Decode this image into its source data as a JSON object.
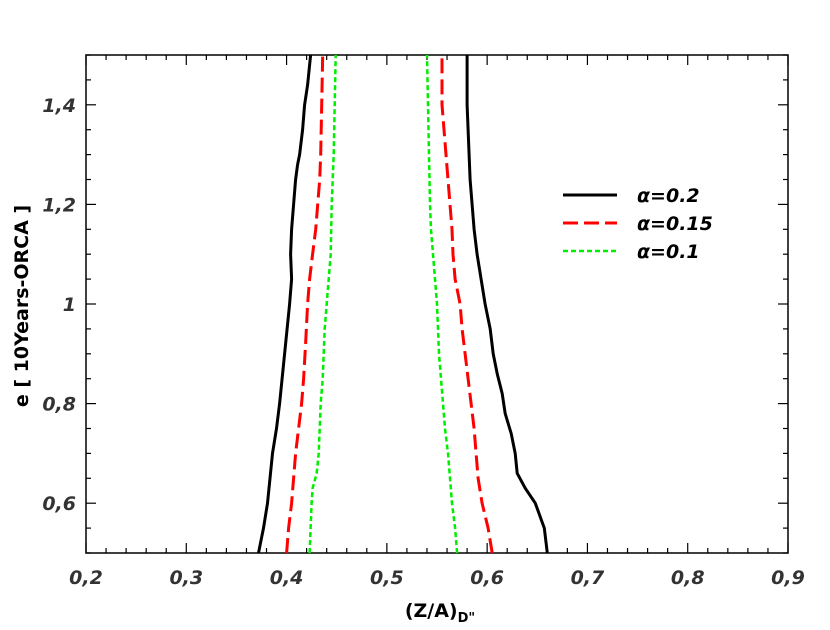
{
  "chart_data": {
    "type": "line",
    "xlabel": "(Z/A)",
    "xlabel_sub": "D\"",
    "ylabel": "e [ 10Years-ORCA ]",
    "xlim": [
      0.2,
      0.9
    ],
    "ylim": [
      0.5,
      1.5
    ],
    "x_ticks": [
      0.2,
      0.3,
      0.4,
      0.5,
      0.6,
      0.7,
      0.8,
      0.9
    ],
    "x_tick_labels": [
      "0,2",
      "0,3",
      "0,4",
      "0,5",
      "0,6",
      "0,7",
      "0,8",
      "0,9"
    ],
    "y_ticks": [
      0.6,
      0.8,
      1.0,
      1.2,
      1.4
    ],
    "y_tick_labels": [
      "0,6",
      "0,8",
      "1",
      "1,2",
      "1,4"
    ],
    "grid": false,
    "legend_position": "right",
    "series": [
      {
        "name": "α=0.2",
        "color": "#000000",
        "dash": "solid",
        "left": {
          "x": [
            0.372,
            0.377,
            0.381,
            0.383,
            0.386,
            0.39,
            0.393,
            0.396,
            0.399,
            0.401,
            0.403,
            0.405,
            0.404,
            0.405,
            0.407,
            0.409,
            0.411,
            0.413,
            0.416,
            0.418,
            0.421,
            0.423,
            0.424
          ],
          "y": [
            0.5,
            0.55,
            0.6,
            0.64,
            0.7,
            0.75,
            0.8,
            0.86,
            0.92,
            0.96,
            1.0,
            1.05,
            1.1,
            1.15,
            1.2,
            1.25,
            1.28,
            1.3,
            1.35,
            1.4,
            1.44,
            1.48,
            1.5
          ]
        },
        "right": {
          "x": [
            0.66,
            0.657,
            0.648,
            0.638,
            0.63,
            0.628,
            0.624,
            0.618,
            0.615,
            0.61,
            0.606,
            0.603,
            0.598,
            0.594,
            0.59,
            0.587,
            0.585,
            0.583,
            0.582,
            0.581,
            0.58,
            0.58
          ],
          "y": [
            0.5,
            0.55,
            0.6,
            0.63,
            0.66,
            0.7,
            0.74,
            0.78,
            0.82,
            0.86,
            0.9,
            0.95,
            1.0,
            1.05,
            1.1,
            1.15,
            1.2,
            1.25,
            1.3,
            1.35,
            1.4,
            1.5
          ]
        }
      },
      {
        "name": "α=0.15",
        "color": "#ff0000",
        "dash": "long-dash",
        "left": {
          "x": [
            0.4,
            0.402,
            0.405,
            0.407,
            0.409,
            0.412,
            0.415,
            0.417,
            0.419,
            0.421,
            0.423,
            0.426,
            0.429,
            0.431,
            0.433,
            0.434,
            0.435,
            0.436
          ],
          "y": [
            0.5,
            0.55,
            0.6,
            0.65,
            0.7,
            0.75,
            0.8,
            0.85,
            0.92,
            1.0,
            1.05,
            1.1,
            1.15,
            1.2,
            1.25,
            1.3,
            1.4,
            1.5
          ]
        },
        "right": {
          "x": [
            0.605,
            0.601,
            0.595,
            0.591,
            0.589,
            0.587,
            0.584,
            0.581,
            0.578,
            0.575,
            0.573,
            0.568,
            0.566,
            0.565,
            0.563,
            0.561,
            0.559,
            0.557,
            0.555,
            0.555
          ],
          "y": [
            0.5,
            0.55,
            0.6,
            0.65,
            0.7,
            0.75,
            0.8,
            0.85,
            0.9,
            0.95,
            1.0,
            1.05,
            1.1,
            1.15,
            1.2,
            1.25,
            1.3,
            1.35,
            1.4,
            1.5
          ]
        }
      },
      {
        "name": "α=0.1",
        "color": "#00ee00",
        "dash": "dotted",
        "left": {
          "x": [
            0.423,
            0.424,
            0.425,
            0.426,
            0.43,
            0.432,
            0.433,
            0.434,
            0.436,
            0.437,
            0.438,
            0.44,
            0.442,
            0.444,
            0.445,
            0.447,
            0.448,
            0.449
          ],
          "y": [
            0.5,
            0.55,
            0.6,
            0.63,
            0.66,
            0.7,
            0.75,
            0.8,
            0.85,
            0.9,
            0.95,
            1.0,
            1.05,
            1.1,
            1.2,
            1.3,
            1.4,
            1.5
          ]
        },
        "right": {
          "x": [
            0.57,
            0.568,
            0.565,
            0.563,
            0.561,
            0.558,
            0.556,
            0.554,
            0.552,
            0.551,
            0.55,
            0.548,
            0.546,
            0.544,
            0.543,
            0.542,
            0.541,
            0.54
          ],
          "y": [
            0.5,
            0.55,
            0.6,
            0.65,
            0.7,
            0.75,
            0.8,
            0.85,
            0.9,
            0.95,
            1.0,
            1.05,
            1.1,
            1.15,
            1.2,
            1.3,
            1.4,
            1.5
          ]
        }
      }
    ]
  }
}
